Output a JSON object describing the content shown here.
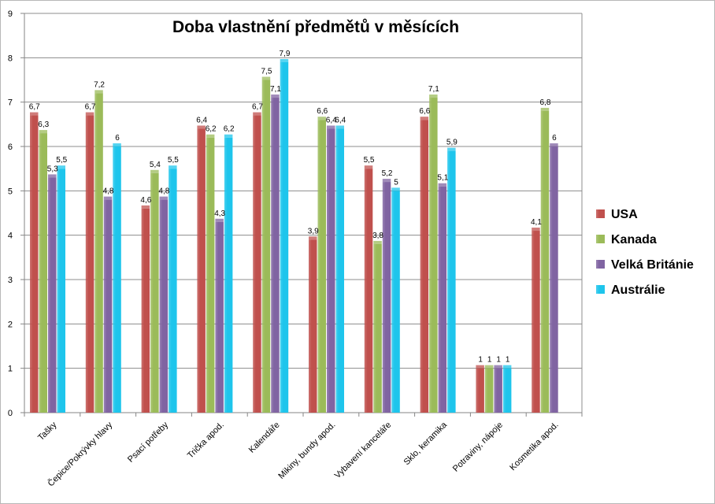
{
  "chart_data": {
    "type": "bar",
    "title": "Doba vlastnění předmětů v měsících",
    "categories": [
      "Tašky",
      "Čepice/Pokrývky hlavy",
      "Psací potřeby",
      "Trička apod.",
      "Kalendáře",
      "Mikiny, bundy apod.",
      "Vybavení kanceláře",
      "Sklo, keramika",
      "Potraviny, nápoje",
      "Kosmetika apod."
    ],
    "series": [
      {
        "name": "USA",
        "color": "#c0504d",
        "values": [
          6.7,
          6.7,
          4.6,
          6.4,
          6.7,
          3.9,
          5.5,
          6.6,
          1,
          4.1
        ]
      },
      {
        "name": "Kanada",
        "color": "#9bbb59",
        "values": [
          6.3,
          7.2,
          5.4,
          6.2,
          7.5,
          6.6,
          3.8,
          7.1,
          1,
          6.8
        ]
      },
      {
        "name": "Velká Británie",
        "color": "#8064a2",
        "values": [
          5.3,
          4.8,
          4.8,
          4.3,
          7.1,
          6.4,
          5.2,
          5.1,
          1,
          6
        ]
      },
      {
        "name": "Austrálie",
        "color": "#1ec5ec",
        "values": [
          5.5,
          6,
          5.5,
          6.2,
          7.9,
          6.4,
          5,
          5.9,
          1,
          null
        ]
      }
    ],
    "value_labels": [
      [
        "6,7",
        "6,7",
        "4,6",
        "6,4",
        "6,7",
        "3,9",
        "5,5",
        "6,6",
        "1",
        "4,1"
      ],
      [
        "6,3",
        "7,2",
        "5,4",
        "6,2",
        "7,5",
        "6,6",
        "3,8",
        "7,1",
        "1",
        "6,8"
      ],
      [
        "5,3",
        "4,8",
        "4,8",
        "4,3",
        "7,1",
        "6,4",
        "5,2",
        "5,1",
        "1",
        "6"
      ],
      [
        "5,5",
        "6",
        "5,5",
        "6,2",
        "7,9",
        "6,4",
        "5",
        "5,9",
        "1",
        ""
      ]
    ],
    "ylim": [
      0,
      9
    ],
    "yticks": [
      "0",
      "1",
      "2",
      "3",
      "4",
      "5",
      "6",
      "7",
      "8",
      "9"
    ],
    "grid": true,
    "legend": "right"
  }
}
